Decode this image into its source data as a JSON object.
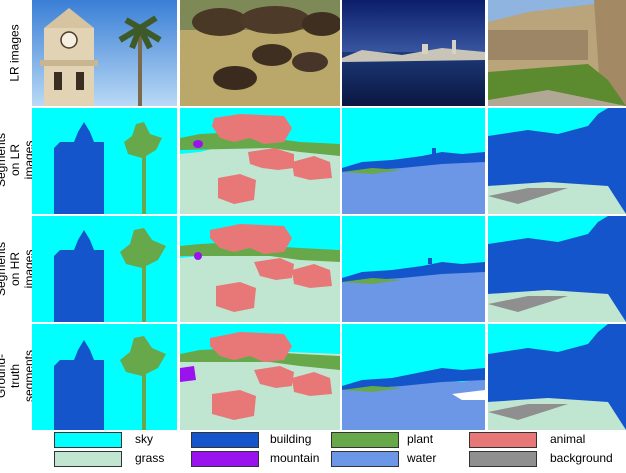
{
  "rows": [
    {
      "label": "LR images"
    },
    {
      "label": "Segments on LR images"
    },
    {
      "label": "Segments on HR images"
    },
    {
      "label": "Ground-truth segments"
    }
  ],
  "columns": [
    "church tower and palm",
    "bison herd",
    "waterfront",
    "courtyard"
  ],
  "legend": [
    {
      "label": "sky",
      "color": "#00ffff"
    },
    {
      "label": "grass",
      "color": "#c0e6d2"
    },
    {
      "label": "building",
      "color": "#1555cc"
    },
    {
      "label": "mountain",
      "color": "#9a12ee"
    },
    {
      "label": "plant",
      "color": "#66a84a"
    },
    {
      "label": "water",
      "color": "#6c97e6"
    },
    {
      "label": "animal",
      "color": "#e87878"
    },
    {
      "label": "background",
      "color": "#8f8f8f"
    }
  ]
}
